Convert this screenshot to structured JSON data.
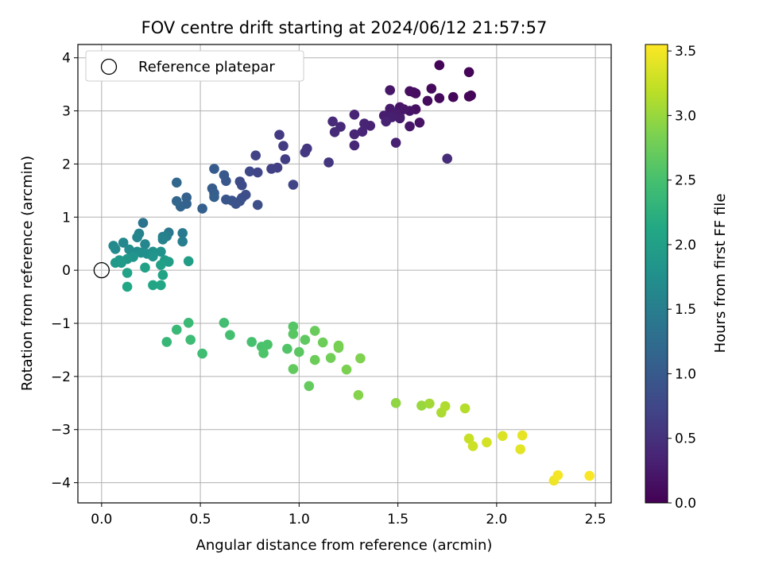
{
  "chart_data": {
    "type": "scatter",
    "title": "FOV centre drift starting at 2024/06/12 21:57:57",
    "xlabel": "Angular distance from reference (arcmin)",
    "ylabel": "Rotation from reference (arcmin)",
    "xlim": [
      -0.12,
      2.58
    ],
    "ylim": [
      -4.38,
      4.25
    ],
    "xticks": [
      0.0,
      0.5,
      1.0,
      1.5,
      2.0,
      2.5
    ],
    "xtick_labels": [
      "0.0",
      "0.5",
      "1.0",
      "1.5",
      "2.0",
      "2.5"
    ],
    "yticks": [
      -4,
      -3,
      -2,
      -1,
      0,
      1,
      2,
      3,
      4
    ],
    "ytick_labels": [
      "−4",
      "−3",
      "−2",
      "−1",
      "0",
      "1",
      "2",
      "3",
      "4"
    ],
    "grid": true,
    "legend": {
      "position": "top-left",
      "label": "Reference platepar"
    },
    "reference_point": {
      "x": 0.0,
      "y": 0.0
    },
    "colorbar": {
      "label": "Hours from first FF file",
      "colormap": "viridis",
      "range": [
        0.0,
        3.55
      ],
      "ticks": [
        0.0,
        0.5,
        1.0,
        1.5,
        2.0,
        2.5,
        3.0,
        3.5
      ],
      "tick_labels": [
        "0.0",
        "0.5",
        "1.0",
        "1.5",
        "2.0",
        "2.5",
        "3.0",
        "3.5"
      ]
    },
    "points": [
      {
        "x": 1.71,
        "y": 3.86,
        "c": 0.03
      },
      {
        "x": 1.86,
        "y": 3.73,
        "c": 0.03
      },
      {
        "x": 1.87,
        "y": 3.29,
        "c": 0.04
      },
      {
        "x": 1.86,
        "y": 3.27,
        "c": 0.05
      },
      {
        "x": 1.78,
        "y": 3.26,
        "c": 0.06
      },
      {
        "x": 1.71,
        "y": 3.24,
        "c": 0.07
      },
      {
        "x": 1.67,
        "y": 3.42,
        "c": 0.09
      },
      {
        "x": 1.65,
        "y": 3.19,
        "c": 0.1
      },
      {
        "x": 1.75,
        "y": 2.1,
        "c": 0.45
      },
      {
        "x": 1.58,
        "y": 3.35,
        "c": 0.12
      },
      {
        "x": 1.59,
        "y": 3.33,
        "c": 0.13
      },
      {
        "x": 1.56,
        "y": 3.37,
        "c": 0.14
      },
      {
        "x": 1.59,
        "y": 3.03,
        "c": 0.16
      },
      {
        "x": 1.61,
        "y": 2.78,
        "c": 0.18
      },
      {
        "x": 1.56,
        "y": 3.0,
        "c": 0.19
      },
      {
        "x": 1.51,
        "y": 3.07,
        "c": 0.2
      },
      {
        "x": 1.56,
        "y": 2.71,
        "c": 0.21
      },
      {
        "x": 1.46,
        "y": 3.39,
        "c": 0.22
      },
      {
        "x": 1.53,
        "y": 3.03,
        "c": 0.23
      },
      {
        "x": 1.51,
        "y": 2.88,
        "c": 0.24
      },
      {
        "x": 1.46,
        "y": 3.04,
        "c": 0.26
      },
      {
        "x": 1.49,
        "y": 2.95,
        "c": 0.27
      },
      {
        "x": 1.51,
        "y": 2.86,
        "c": 0.28
      },
      {
        "x": 1.43,
        "y": 2.91,
        "c": 0.29
      },
      {
        "x": 1.47,
        "y": 2.88,
        "c": 0.3
      },
      {
        "x": 1.49,
        "y": 2.4,
        "c": 0.32
      },
      {
        "x": 1.44,
        "y": 2.8,
        "c": 0.33
      },
      {
        "x": 1.36,
        "y": 2.72,
        "c": 0.34
      },
      {
        "x": 1.33,
        "y": 2.76,
        "c": 0.35
      },
      {
        "x": 1.28,
        "y": 2.93,
        "c": 0.36
      },
      {
        "x": 1.32,
        "y": 2.61,
        "c": 0.37
      },
      {
        "x": 1.28,
        "y": 2.56,
        "c": 0.38
      },
      {
        "x": 1.28,
        "y": 2.35,
        "c": 0.4
      },
      {
        "x": 1.21,
        "y": 2.7,
        "c": 0.41
      },
      {
        "x": 1.17,
        "y": 2.8,
        "c": 0.42
      },
      {
        "x": 1.18,
        "y": 2.6,
        "c": 0.43
      },
      {
        "x": 1.15,
        "y": 2.03,
        "c": 0.55
      },
      {
        "x": 1.04,
        "y": 2.29,
        "c": 0.56
      },
      {
        "x": 1.03,
        "y": 2.22,
        "c": 0.58
      },
      {
        "x": 0.97,
        "y": 1.61,
        "c": 0.72
      },
      {
        "x": 0.9,
        "y": 2.55,
        "c": 0.6
      },
      {
        "x": 0.92,
        "y": 2.34,
        "c": 0.62
      },
      {
        "x": 0.93,
        "y": 2.09,
        "c": 0.64
      },
      {
        "x": 0.89,
        "y": 1.93,
        "c": 0.66
      },
      {
        "x": 0.86,
        "y": 1.91,
        "c": 0.68
      },
      {
        "x": 0.78,
        "y": 2.16,
        "c": 0.7
      },
      {
        "x": 0.79,
        "y": 1.84,
        "c": 0.74
      },
      {
        "x": 0.75,
        "y": 1.86,
        "c": 0.76
      },
      {
        "x": 0.79,
        "y": 1.23,
        "c": 0.85
      },
      {
        "x": 0.71,
        "y": 1.6,
        "c": 0.8
      },
      {
        "x": 0.7,
        "y": 1.67,
        "c": 0.82
      },
      {
        "x": 0.73,
        "y": 1.42,
        "c": 0.84
      },
      {
        "x": 0.71,
        "y": 1.36,
        "c": 0.86
      },
      {
        "x": 0.7,
        "y": 1.3,
        "c": 0.88
      },
      {
        "x": 0.68,
        "y": 1.25,
        "c": 0.9
      },
      {
        "x": 0.66,
        "y": 1.31,
        "c": 0.92
      },
      {
        "x": 0.63,
        "y": 1.33,
        "c": 0.94
      },
      {
        "x": 0.63,
        "y": 1.68,
        "c": 0.96
      },
      {
        "x": 0.62,
        "y": 1.79,
        "c": 0.98
      },
      {
        "x": 0.57,
        "y": 1.91,
        "c": 1.0
      },
      {
        "x": 0.56,
        "y": 1.54,
        "c": 1.02
      },
      {
        "x": 0.57,
        "y": 1.45,
        "c": 1.04
      },
      {
        "x": 0.57,
        "y": 1.38,
        "c": 1.06
      },
      {
        "x": 0.51,
        "y": 1.16,
        "c": 1.08
      },
      {
        "x": 0.43,
        "y": 1.37,
        "c": 1.1
      },
      {
        "x": 0.43,
        "y": 1.25,
        "c": 1.12
      },
      {
        "x": 0.4,
        "y": 1.2,
        "c": 1.14
      },
      {
        "x": 0.38,
        "y": 1.3,
        "c": 1.16
      },
      {
        "x": 0.38,
        "y": 1.65,
        "c": 1.18
      },
      {
        "x": 0.21,
        "y": 0.89,
        "c": 1.35
      },
      {
        "x": 0.34,
        "y": 0.71,
        "c": 1.4
      },
      {
        "x": 0.41,
        "y": 0.7,
        "c": 1.45
      },
      {
        "x": 0.41,
        "y": 0.54,
        "c": 1.5
      },
      {
        "x": 0.33,
        "y": 0.64,
        "c": 1.52
      },
      {
        "x": 0.31,
        "y": 0.63,
        "c": 1.54
      },
      {
        "x": 0.31,
        "y": 0.58,
        "c": 1.56
      },
      {
        "x": 0.19,
        "y": 0.69,
        "c": 1.58
      },
      {
        "x": 0.18,
        "y": 0.62,
        "c": 1.6
      },
      {
        "x": 0.22,
        "y": 0.49,
        "c": 1.62
      },
      {
        "x": 0.11,
        "y": 0.52,
        "c": 1.64
      },
      {
        "x": 0.06,
        "y": 0.46,
        "c": 1.66
      },
      {
        "x": 0.07,
        "y": 0.4,
        "c": 1.68
      },
      {
        "x": 0.14,
        "y": 0.39,
        "c": 1.7
      },
      {
        "x": 0.18,
        "y": 0.35,
        "c": 1.72
      },
      {
        "x": 0.2,
        "y": 0.33,
        "c": 1.74
      },
      {
        "x": 0.23,
        "y": 0.31,
        "c": 1.76
      },
      {
        "x": 0.26,
        "y": 0.35,
        "c": 1.78
      },
      {
        "x": 0.3,
        "y": 0.35,
        "c": 1.8
      },
      {
        "x": 0.26,
        "y": 0.26,
        "c": 1.82
      },
      {
        "x": 0.16,
        "y": 0.25,
        "c": 1.84
      },
      {
        "x": 0.13,
        "y": 0.21,
        "c": 1.86
      },
      {
        "x": 0.09,
        "y": 0.19,
        "c": 1.88
      },
      {
        "x": 0.07,
        "y": 0.14,
        "c": 1.9
      },
      {
        "x": 0.1,
        "y": 0.14,
        "c": 1.92
      },
      {
        "x": 0.32,
        "y": 0.19,
        "c": 1.94
      },
      {
        "x": 0.34,
        "y": 0.16,
        "c": 1.96
      },
      {
        "x": 0.44,
        "y": 0.17,
        "c": 1.98
      },
      {
        "x": 0.3,
        "y": 0.1,
        "c": 2.0
      },
      {
        "x": 0.22,
        "y": 0.05,
        "c": 2.02
      },
      {
        "x": 0.13,
        "y": -0.05,
        "c": 2.04
      },
      {
        "x": 0.31,
        "y": -0.09,
        "c": 2.06
      },
      {
        "x": 0.26,
        "y": -0.28,
        "c": 2.08
      },
      {
        "x": 0.3,
        "y": -0.28,
        "c": 2.1
      },
      {
        "x": 0.13,
        "y": -0.31,
        "c": 2.12
      },
      {
        "x": 0.33,
        "y": -1.35,
        "c": 2.35
      },
      {
        "x": 0.38,
        "y": -1.12,
        "c": 2.38
      },
      {
        "x": 0.44,
        "y": -0.99,
        "c": 2.4
      },
      {
        "x": 0.45,
        "y": -1.31,
        "c": 2.42
      },
      {
        "x": 0.51,
        "y": -1.57,
        "c": 2.44
      },
      {
        "x": 0.62,
        "y": -0.99,
        "c": 2.46
      },
      {
        "x": 0.65,
        "y": -1.22,
        "c": 2.48
      },
      {
        "x": 0.76,
        "y": -1.35,
        "c": 2.5
      },
      {
        "x": 0.81,
        "y": -1.44,
        "c": 2.52
      },
      {
        "x": 0.84,
        "y": -1.4,
        "c": 2.54
      },
      {
        "x": 0.82,
        "y": -1.56,
        "c": 2.56
      },
      {
        "x": 0.94,
        "y": -1.48,
        "c": 2.58
      },
      {
        "x": 0.97,
        "y": -1.06,
        "c": 2.6
      },
      {
        "x": 0.97,
        "y": -1.2,
        "c": 2.62
      },
      {
        "x": 1.0,
        "y": -1.54,
        "c": 2.64
      },
      {
        "x": 1.03,
        "y": -1.31,
        "c": 2.66
      },
      {
        "x": 0.97,
        "y": -1.86,
        "c": 2.68
      },
      {
        "x": 1.05,
        "y": -2.18,
        "c": 2.7
      },
      {
        "x": 1.08,
        "y": -1.14,
        "c": 2.72
      },
      {
        "x": 1.08,
        "y": -1.69,
        "c": 2.74
      },
      {
        "x": 1.12,
        "y": -1.36,
        "c": 2.76
      },
      {
        "x": 1.16,
        "y": -1.65,
        "c": 2.78
      },
      {
        "x": 1.2,
        "y": -1.42,
        "c": 2.8
      },
      {
        "x": 1.2,
        "y": -1.46,
        "c": 2.82
      },
      {
        "x": 1.24,
        "y": -1.87,
        "c": 2.84
      },
      {
        "x": 1.31,
        "y": -1.66,
        "c": 2.86
      },
      {
        "x": 1.3,
        "y": -2.35,
        "c": 2.9
      },
      {
        "x": 1.49,
        "y": -2.5,
        "c": 2.95
      },
      {
        "x": 1.62,
        "y": -2.55,
        "c": 3.0
      },
      {
        "x": 1.66,
        "y": -2.51,
        "c": 3.05
      },
      {
        "x": 1.72,
        "y": -2.68,
        "c": 3.1
      },
      {
        "x": 1.74,
        "y": -2.56,
        "c": 3.12
      },
      {
        "x": 1.84,
        "y": -2.6,
        "c": 3.15
      },
      {
        "x": 1.86,
        "y": -3.17,
        "c": 3.25
      },
      {
        "x": 1.88,
        "y": -3.31,
        "c": 3.28
      },
      {
        "x": 1.95,
        "y": -3.24,
        "c": 3.32
      },
      {
        "x": 2.03,
        "y": -3.12,
        "c": 3.36
      },
      {
        "x": 2.12,
        "y": -3.37,
        "c": 3.4
      },
      {
        "x": 2.13,
        "y": -3.11,
        "c": 3.42
      },
      {
        "x": 2.29,
        "y": -3.96,
        "c": 3.46
      },
      {
        "x": 2.31,
        "y": -3.86,
        "c": 3.5
      },
      {
        "x": 2.47,
        "y": -3.87,
        "c": 3.53
      }
    ]
  }
}
